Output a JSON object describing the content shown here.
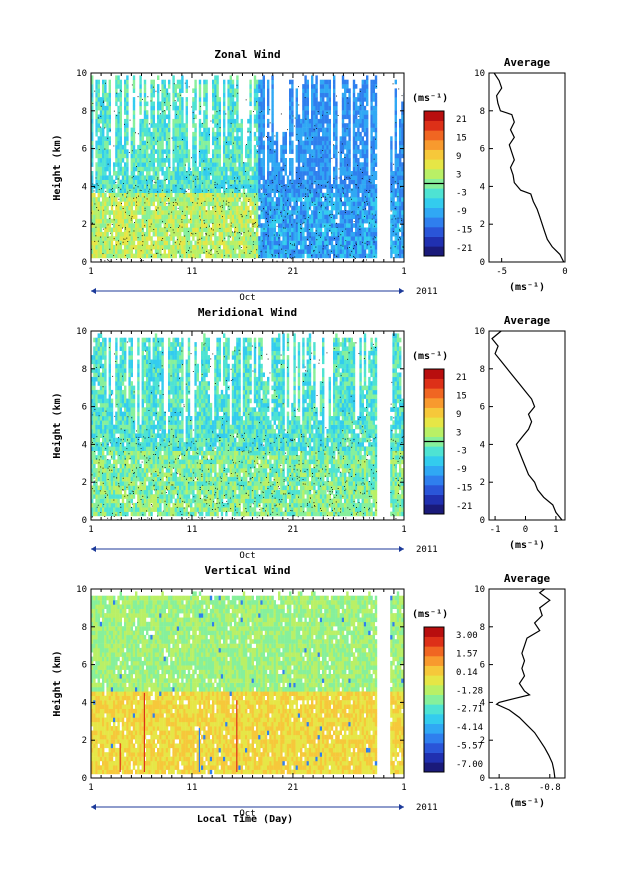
{
  "figure": {
    "xlabel": "Local Time (Day)",
    "average_title": "Average",
    "units_label": "(ms⁻¹)",
    "x_ticks": [
      "1",
      "11",
      "21",
      "1"
    ],
    "month_label": "Oct",
    "year_label": "2011",
    "ylabel": "Height (km)"
  },
  "chart_data": [
    {
      "type": "heatmap",
      "title": "Zonal Wind",
      "ylabel": "Height (km)",
      "xlabel": "",
      "x_range_days": [
        1,
        32
      ],
      "ylim": [
        0,
        10
      ],
      "y_ticks": [
        "0",
        "2",
        "4",
        "6",
        "8",
        "10"
      ],
      "colorbar": {
        "unit": "(ms⁻¹)",
        "ticks": [
          "21",
          "15",
          "9",
          "3",
          "-3",
          "-9",
          "-15",
          "-21"
        ],
        "range": [
          -24,
          24
        ],
        "colors": [
          "#1a1a7a",
          "#2030b0",
          "#2a55d8",
          "#2f7fee",
          "#30a8f4",
          "#33ccee",
          "#4ee3d3",
          "#86f09b",
          "#b9f066",
          "#e6e646",
          "#f6c83a",
          "#f89a2e",
          "#f06622",
          "#dd3018",
          "#b80e0e"
        ]
      },
      "style": "zonal",
      "average": {
        "xlabel": "(ms⁻¹)",
        "x_ticks": [
          "-5",
          "0"
        ],
        "xlim": [
          -6,
          0
        ],
        "profile": [
          [
            0.0,
            -0.1
          ],
          [
            0.4,
            -0.4
          ],
          [
            0.8,
            -1.0
          ],
          [
            1.2,
            -1.4
          ],
          [
            1.6,
            -1.6
          ],
          [
            2.0,
            -1.8
          ],
          [
            2.4,
            -2.0
          ],
          [
            2.8,
            -2.2
          ],
          [
            3.2,
            -2.5
          ],
          [
            3.6,
            -2.7
          ],
          [
            3.8,
            -3.5
          ],
          [
            4.2,
            -4.0
          ],
          [
            4.6,
            -4.1
          ],
          [
            5.0,
            -4.3
          ],
          [
            5.4,
            -4.0
          ],
          [
            5.8,
            -4.2
          ],
          [
            6.2,
            -4.4
          ],
          [
            6.6,
            -4.0
          ],
          [
            7.0,
            -4.3
          ],
          [
            7.4,
            -4.0
          ],
          [
            7.8,
            -4.2
          ],
          [
            8.0,
            -5.1
          ],
          [
            8.4,
            -5.3
          ],
          [
            8.8,
            -5.4
          ],
          [
            9.2,
            -5.0
          ],
          [
            9.6,
            -5.2
          ],
          [
            10.0,
            -5.6
          ]
        ]
      }
    },
    {
      "type": "heatmap",
      "title": "Meridional Wind",
      "ylabel": "Height (km)",
      "xlabel": "",
      "x_range_days": [
        1,
        32
      ],
      "ylim": [
        0,
        10
      ],
      "y_ticks": [
        "0",
        "2",
        "4",
        "6",
        "8",
        "10"
      ],
      "colorbar": {
        "unit": "(ms⁻¹)",
        "ticks": [
          "21",
          "15",
          "9",
          "3",
          "-3",
          "-9",
          "-15",
          "-21"
        ],
        "range": [
          -24,
          24
        ],
        "colors": [
          "#1a1a7a",
          "#2030b0",
          "#2a55d8",
          "#2f7fee",
          "#30a8f4",
          "#33ccee",
          "#4ee3d3",
          "#86f09b",
          "#b9f066",
          "#e6e646",
          "#f6c83a",
          "#f89a2e",
          "#f06622",
          "#dd3018",
          "#b80e0e"
        ]
      },
      "style": "meridional",
      "average": {
        "xlabel": "(ms⁻¹)",
        "x_ticks": [
          "-1",
          "0",
          "1"
        ],
        "xlim": [
          -1.2,
          1.3
        ],
        "profile": [
          [
            0.0,
            1.2
          ],
          [
            0.4,
            1.0
          ],
          [
            0.8,
            0.9
          ],
          [
            1.2,
            0.6
          ],
          [
            1.6,
            0.4
          ],
          [
            2.0,
            0.3
          ],
          [
            2.4,
            0.1
          ],
          [
            2.8,
            0.0
          ],
          [
            3.2,
            -0.1
          ],
          [
            3.6,
            -0.2
          ],
          [
            4.0,
            -0.3
          ],
          [
            4.4,
            -0.1
          ],
          [
            4.8,
            0.1
          ],
          [
            5.2,
            0.2
          ],
          [
            5.6,
            0.1
          ],
          [
            6.0,
            0.3
          ],
          [
            6.4,
            0.2
          ],
          [
            6.8,
            0.0
          ],
          [
            7.2,
            -0.2
          ],
          [
            7.6,
            -0.4
          ],
          [
            8.0,
            -0.6
          ],
          [
            8.4,
            -0.8
          ],
          [
            8.8,
            -1.0
          ],
          [
            9.2,
            -0.9
          ],
          [
            9.6,
            -1.1
          ],
          [
            10.0,
            -0.8
          ]
        ]
      }
    },
    {
      "type": "heatmap",
      "title": "Vertical Wind",
      "ylabel": "Height (km)",
      "xlabel": "Local Time (Day)",
      "x_range_days": [
        1,
        32
      ],
      "ylim": [
        0,
        10
      ],
      "y_ticks": [
        "0",
        "2",
        "4",
        "6",
        "8",
        "10"
      ],
      "colorbar": {
        "unit": "(ms⁻¹)",
        "ticks": [
          "3.00",
          "1.57",
          "0.14",
          "-1.28",
          "-2.71",
          "-4.14",
          "-5.57",
          "-7.00"
        ],
        "range": [
          -7.5,
          3.5
        ],
        "colors": [
          "#1a1a7a",
          "#2030b0",
          "#2a55d8",
          "#2f7fee",
          "#30a8f4",
          "#33ccee",
          "#4ee3d3",
          "#86f09b",
          "#b9f066",
          "#e6e646",
          "#f6c83a",
          "#f89a2e",
          "#f06622",
          "#dd3018",
          "#b80e0e"
        ]
      },
      "style": "vertical",
      "average": {
        "xlabel": "(ms⁻¹)",
        "x_ticks": [
          "-1.8",
          "-0.8"
        ],
        "xlim": [
          -2.0,
          -0.5
        ],
        "profile": [
          [
            0.0,
            -0.7
          ],
          [
            0.4,
            -0.72
          ],
          [
            0.8,
            -0.75
          ],
          [
            1.2,
            -0.82
          ],
          [
            1.6,
            -0.9
          ],
          [
            2.0,
            -1.0
          ],
          [
            2.4,
            -1.1
          ],
          [
            2.8,
            -1.25
          ],
          [
            3.2,
            -1.4
          ],
          [
            3.6,
            -1.6
          ],
          [
            3.9,
            -1.85
          ],
          [
            4.0,
            -1.8
          ],
          [
            4.2,
            -1.5
          ],
          [
            4.4,
            -1.2
          ],
          [
            4.6,
            -1.3
          ],
          [
            5.0,
            -1.4
          ],
          [
            5.4,
            -1.3
          ],
          [
            5.8,
            -1.35
          ],
          [
            6.2,
            -1.3
          ],
          [
            6.6,
            -1.35
          ],
          [
            7.0,
            -1.3
          ],
          [
            7.4,
            -1.25
          ],
          [
            7.8,
            -1.0
          ],
          [
            8.2,
            -1.1
          ],
          [
            8.6,
            -0.95
          ],
          [
            9.0,
            -1.0
          ],
          [
            9.4,
            -0.8
          ],
          [
            9.8,
            -1.0
          ],
          [
            10.0,
            -0.9
          ]
        ]
      }
    }
  ]
}
